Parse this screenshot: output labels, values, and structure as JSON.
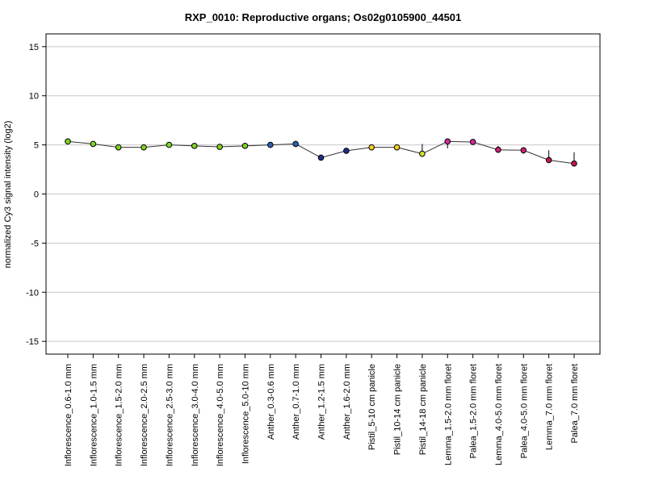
{
  "chart_data": {
    "type": "line",
    "title": "RXP_0010: Reproductive organs; Os02g0105900_44501",
    "xlabel": "",
    "ylabel": "normalized Cy3 signal intensity (log2)",
    "ylim": [
      -16.3,
      16.3
    ],
    "yticks": [
      -15,
      -10,
      -5,
      0,
      5,
      10,
      15
    ],
    "ytick_labels": [
      "-15",
      "-10",
      "-5",
      "0",
      "5",
      "10",
      "15"
    ],
    "grid": true,
    "categories": [
      "Inflorescence_0.6-1.0 mm",
      "Inflorescence_1.0-1.5 mm",
      "Inflorescence_1.5-2.0 mm",
      "Inflorescence_2.0-2.5 mm",
      "Inflorescence_2.5-3.0 mm",
      "Inflorescence_3.0-4.0 mm",
      "Inflorescence_4.0-5.0 mm",
      "Inflorescence_5.0-10 mm",
      "Anther_0.3-0.6 mm",
      "Anther_0.7-1.0 mm",
      "Anther_1.2-1.5 mm",
      "Anther_1.6-2.0 mm",
      "Pistil_5-10 cm panicle",
      "Pistil_10-14 cm panicle",
      "Pistil_14-18 cm panicle",
      "Lemma_1.5-2.0 mm floret",
      "Palea_1.5-2.0 mm floret",
      "Lemma_4.0-5.0 mm floret",
      "Palea_4.0-5.0 mm floret",
      "Lemma_7.0 mm floret",
      "Palea_7.0 mm floret"
    ],
    "series": [
      {
        "values": [
          5.35,
          5.1,
          4.75,
          4.75,
          5.0,
          4.9,
          4.8,
          4.9,
          5.0,
          5.1,
          3.7,
          4.4,
          4.75,
          4.75,
          4.1,
          5.35,
          5.3,
          4.5,
          4.45,
          3.45,
          3.1
        ],
        "error_low": [
          0.1,
          0.1,
          0.1,
          0.1,
          0.1,
          0.1,
          0.1,
          0.1,
          0.1,
          0.1,
          0.15,
          0.1,
          0.2,
          0.25,
          0.3,
          0.7,
          0.2,
          0.3,
          0.35,
          0.25,
          0.1
        ],
        "error_high": [
          0.15,
          0.15,
          0.1,
          0.1,
          0.1,
          0.1,
          0.1,
          0.1,
          0.1,
          0.1,
          0.1,
          0.1,
          0.15,
          0.2,
          1.0,
          0.2,
          0.2,
          0.4,
          0.3,
          1.0,
          1.15
        ],
        "colors": [
          "#7ed321",
          "#7ed321",
          "#7ed321",
          "#7ed321",
          "#7ed321",
          "#7ed321",
          "#7ed321",
          "#7ed321",
          "#2b5fb4",
          "#2b5fb4",
          "#1f2f8a",
          "#1f2f8a",
          "#f0d020",
          "#f0d020",
          "#d4e22c",
          "#d42aa0",
          "#d42aa0",
          "#d0207a",
          "#d0207a",
          "#c4164e",
          "#c4164e"
        ]
      }
    ]
  }
}
